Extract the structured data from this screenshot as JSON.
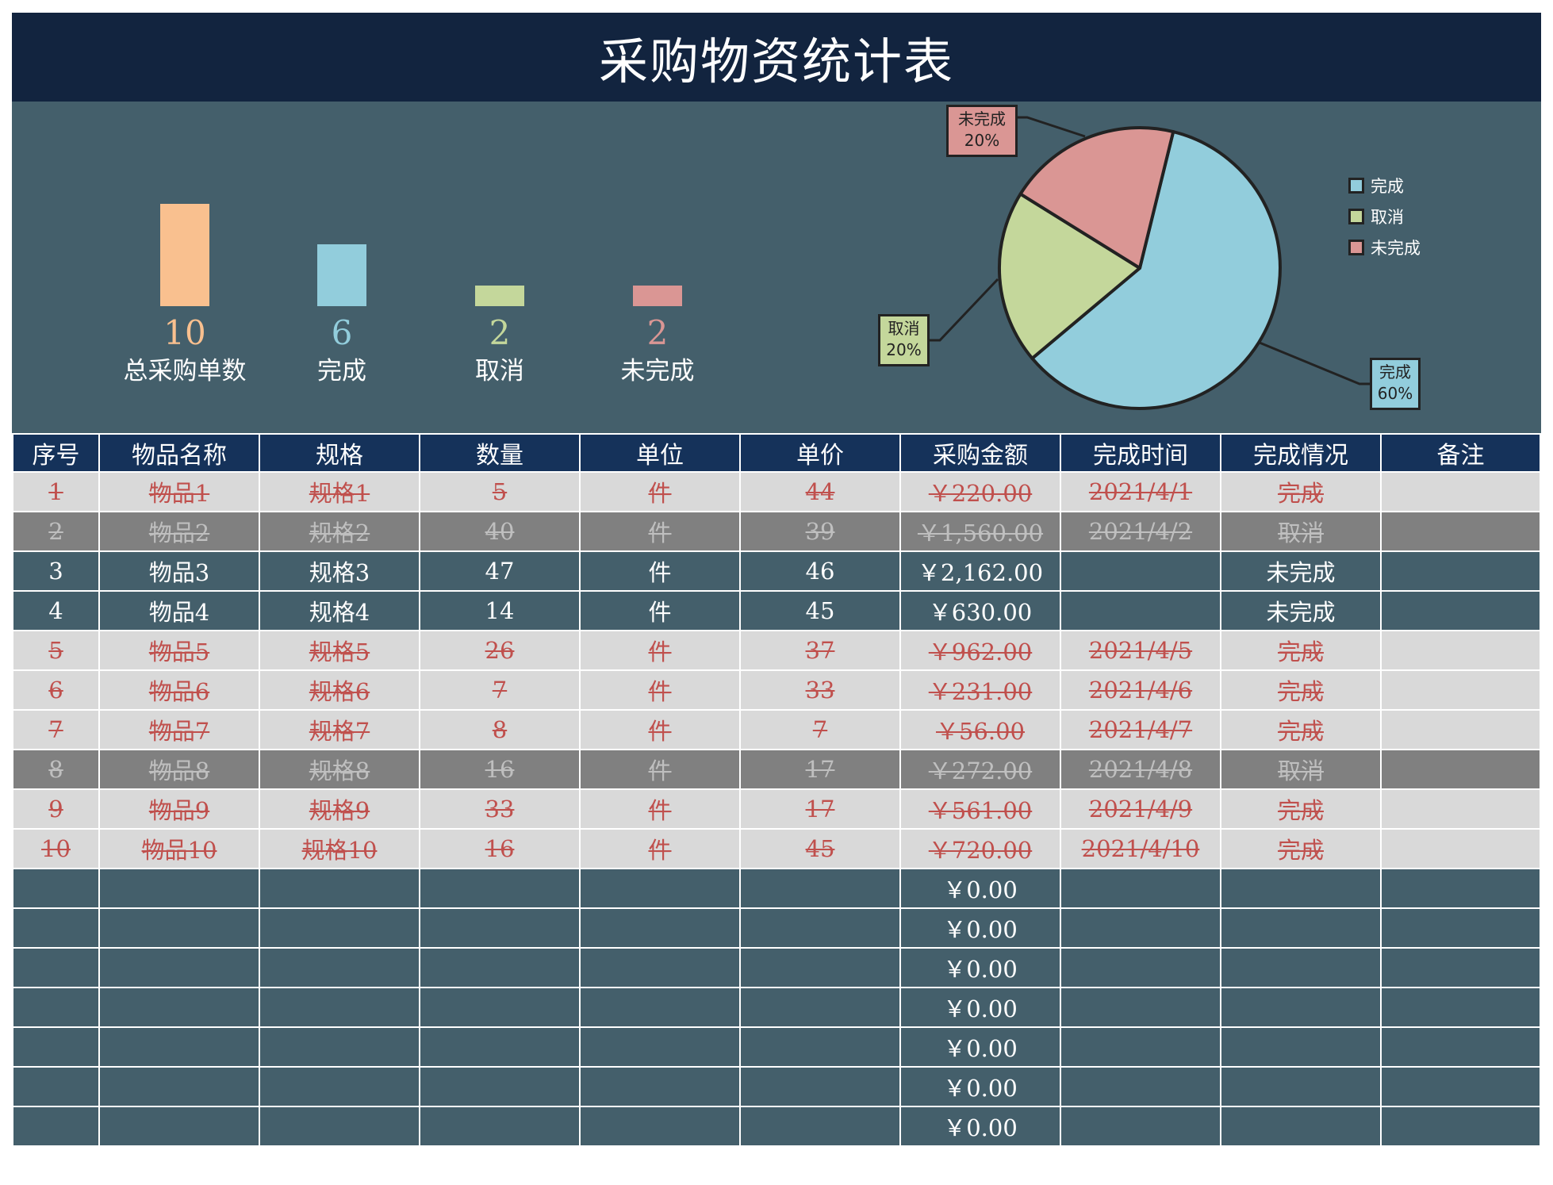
{
  "title": "采购物资统计表",
  "summary": {
    "items": [
      {
        "value": "10",
        "label": "总采购单数",
        "color": "#f9c08f"
      },
      {
        "value": "6",
        "label": "完成",
        "color": "#92cddc"
      },
      {
        "value": "2",
        "label": "取消",
        "color": "#c4d79b"
      },
      {
        "value": "2",
        "label": "未完成",
        "color": "#da9694"
      }
    ]
  },
  "pie": {
    "labels": [
      {
        "name": "未完成",
        "pct": "20%"
      },
      {
        "name": "取消",
        "pct": "20%"
      },
      {
        "name": "完成",
        "pct": "60%"
      }
    ],
    "legend": [
      {
        "name": "完成",
        "color": "#92cddc"
      },
      {
        "name": "取消",
        "color": "#c4d79b"
      },
      {
        "name": "未完成",
        "color": "#da9694"
      }
    ]
  },
  "chart_data": [
    {
      "type": "bar",
      "title": "",
      "categories": [
        "总采购单数",
        "完成",
        "取消",
        "未完成"
      ],
      "values": [
        10,
        6,
        2,
        2
      ],
      "colors": [
        "#f9c08f",
        "#92cddc",
        "#c4d79b",
        "#da9694"
      ],
      "xlabel": "",
      "ylabel": "",
      "grid": false,
      "legend": "none",
      "data_labels": "below bars"
    },
    {
      "type": "pie",
      "title": "",
      "categories": [
        "完成",
        "取消",
        "未完成"
      ],
      "values": [
        60,
        20,
        20
      ],
      "counts": [
        6,
        2,
        2
      ],
      "colors": [
        "#92cddc",
        "#c4d79b",
        "#da9694"
      ],
      "data_labels": [
        "完成 60%",
        "取消 20%",
        "未完成 20%"
      ],
      "legend": "right"
    }
  ],
  "table": {
    "headers": [
      "序号",
      "物品名称",
      "规格",
      "数量",
      "单位",
      "单价",
      "采购金额",
      "完成时间",
      "完成情况",
      "备注"
    ],
    "rows": [
      {
        "status": "done",
        "cells": [
          "1",
          "物品1",
          "规格1",
          "5",
          "件",
          "44",
          "￥220.00",
          "2021/4/1",
          "完成",
          ""
        ]
      },
      {
        "status": "cancel",
        "cells": [
          "2",
          "物品2",
          "规格2",
          "40",
          "件",
          "39",
          "￥1,560.00",
          "2021/4/2",
          "取消",
          ""
        ]
      },
      {
        "status": "pending",
        "cells": [
          "3",
          "物品3",
          "规格3",
          "47",
          "件",
          "46",
          "￥2,162.00",
          "",
          "未完成",
          ""
        ]
      },
      {
        "status": "pending",
        "cells": [
          "4",
          "物品4",
          "规格4",
          "14",
          "件",
          "45",
          "￥630.00",
          "",
          "未完成",
          ""
        ]
      },
      {
        "status": "done",
        "cells": [
          "5",
          "物品5",
          "规格5",
          "26",
          "件",
          "37",
          "￥962.00",
          "2021/4/5",
          "完成",
          ""
        ]
      },
      {
        "status": "done",
        "cells": [
          "6",
          "物品6",
          "规格6",
          "7",
          "件",
          "33",
          "￥231.00",
          "2021/4/6",
          "完成",
          ""
        ]
      },
      {
        "status": "done",
        "cells": [
          "7",
          "物品7",
          "规格7",
          "8",
          "件",
          "7",
          "￥56.00",
          "2021/4/7",
          "完成",
          ""
        ]
      },
      {
        "status": "cancel",
        "cells": [
          "8",
          "物品8",
          "规格8",
          "16",
          "件",
          "17",
          "￥272.00",
          "2021/4/8",
          "取消",
          ""
        ]
      },
      {
        "status": "done",
        "cells": [
          "9",
          "物品9",
          "规格9",
          "33",
          "件",
          "17",
          "￥561.00",
          "2021/4/9",
          "完成",
          ""
        ]
      },
      {
        "status": "done",
        "cells": [
          "10",
          "物品10",
          "规格10",
          "16",
          "件",
          "45",
          "￥720.00",
          "2021/4/10",
          "完成",
          ""
        ]
      },
      {
        "status": "empty",
        "cells": [
          "",
          "",
          "",
          "",
          "",
          "",
          "￥0.00",
          "",
          "",
          ""
        ]
      },
      {
        "status": "empty",
        "cells": [
          "",
          "",
          "",
          "",
          "",
          "",
          "￥0.00",
          "",
          "",
          ""
        ]
      },
      {
        "status": "empty",
        "cells": [
          "",
          "",
          "",
          "",
          "",
          "",
          "￥0.00",
          "",
          "",
          ""
        ]
      },
      {
        "status": "empty",
        "cells": [
          "",
          "",
          "",
          "",
          "",
          "",
          "￥0.00",
          "",
          "",
          ""
        ]
      },
      {
        "status": "empty",
        "cells": [
          "",
          "",
          "",
          "",
          "",
          "",
          "￥0.00",
          "",
          "",
          ""
        ]
      },
      {
        "status": "empty",
        "cells": [
          "",
          "",
          "",
          "",
          "",
          "",
          "￥0.00",
          "",
          "",
          ""
        ]
      },
      {
        "status": "empty",
        "cells": [
          "",
          "",
          "",
          "",
          "",
          "",
          "￥0.00",
          "",
          "",
          ""
        ]
      }
    ]
  }
}
